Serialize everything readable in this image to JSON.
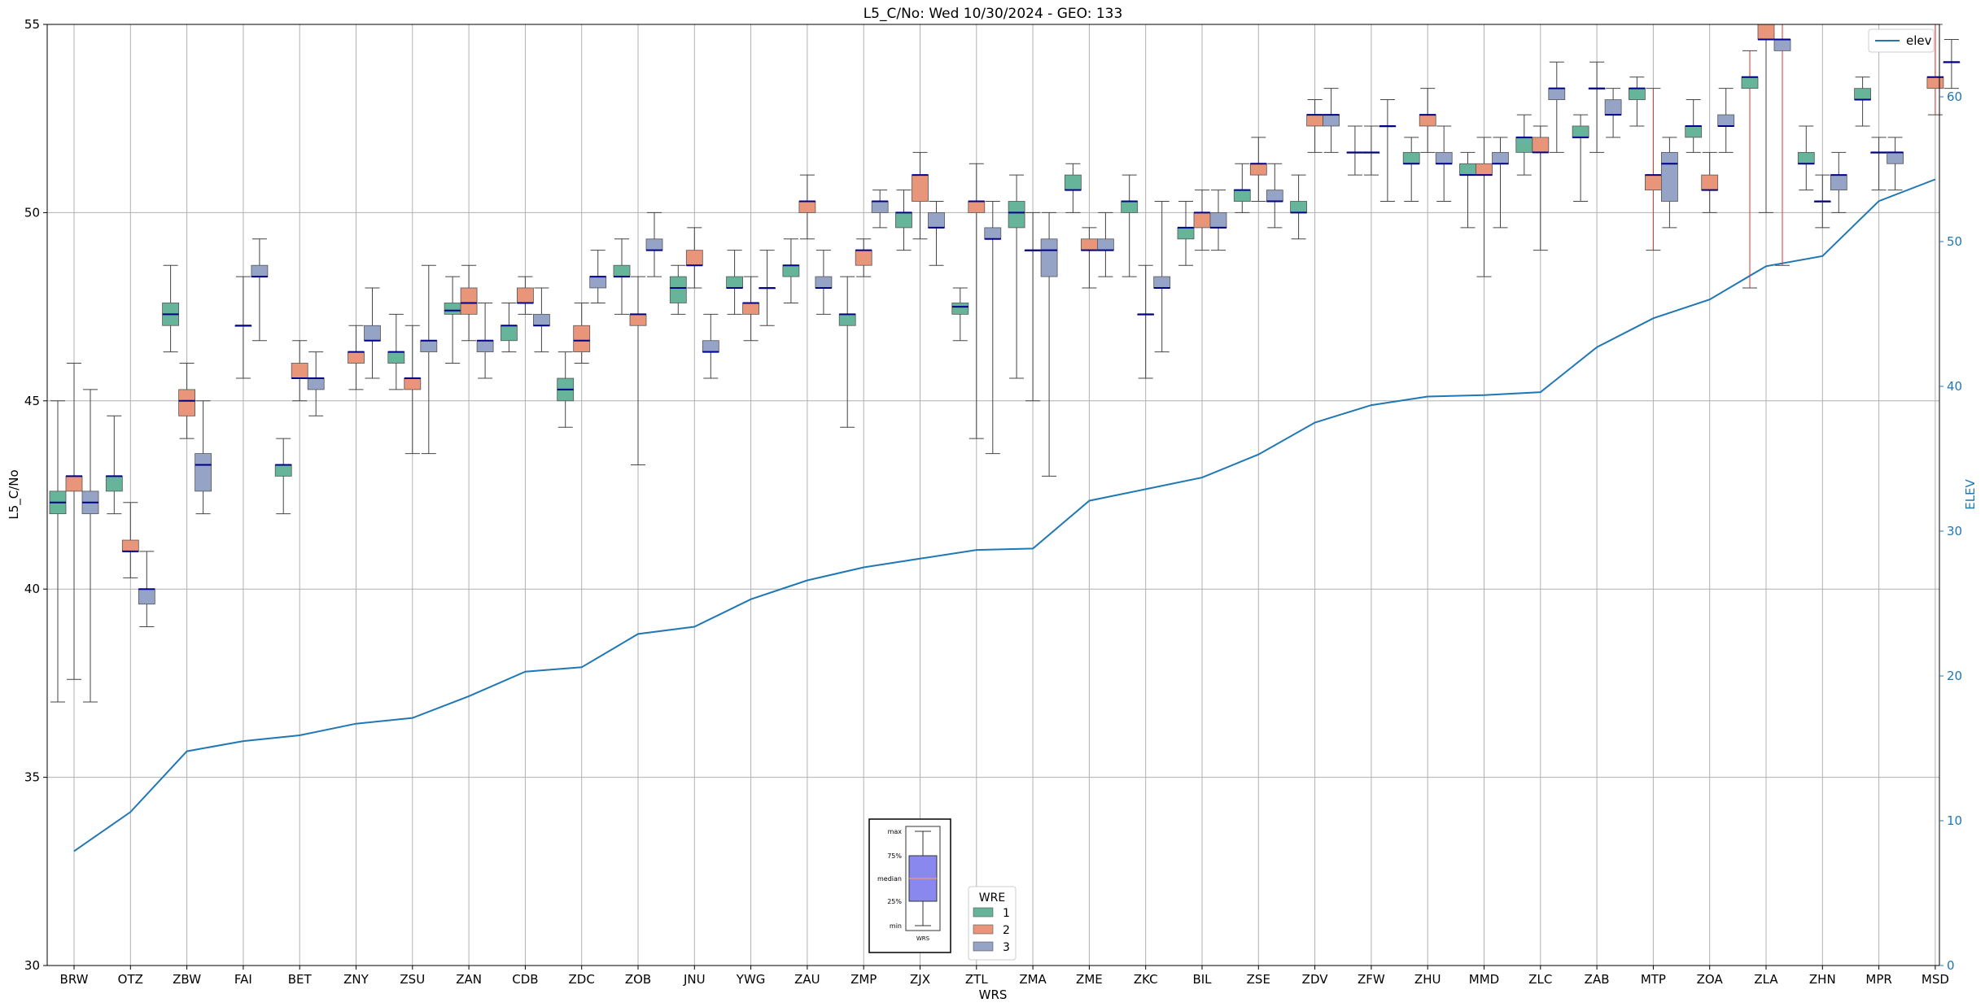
{
  "chart_data": {
    "type": "box",
    "title": "L5_C/No: Wed 10/30/2024 - GEO: 133",
    "xlabel": "WRS",
    "ylabel": "L5_C/No",
    "y2label": "ELEV",
    "ylim": [
      30,
      55
    ],
    "y2lim": [
      0,
      65
    ],
    "yticks": [
      30,
      35,
      40,
      45,
      50,
      55
    ],
    "y2ticks": [
      0,
      10,
      20,
      30,
      40,
      50,
      60
    ],
    "grid": true,
    "categories": [
      "BRW",
      "OTZ",
      "ZBW",
      "FAI",
      "BET",
      "ZNY",
      "ZSU",
      "ZAN",
      "CDB",
      "ZDC",
      "ZOB",
      "JNU",
      "YWG",
      "ZAU",
      "ZMP",
      "ZJX",
      "ZTL",
      "ZMA",
      "ZME",
      "ZKC",
      "BIL",
      "ZSE",
      "ZDV",
      "ZFW",
      "ZHU",
      "MMD",
      "ZLC",
      "ZAB",
      "MTP",
      "ZOA",
      "ZLA",
      "ZHN",
      "MPR",
      "MSD"
    ],
    "legend_title": "WRE",
    "legend_placement": "lower-center",
    "series": [
      {
        "name": "1",
        "color": "#66b49a",
        "boxes": [
          {
            "min": 37.0,
            "q1": 42.0,
            "med": 42.3,
            "q3": 42.6,
            "max": 45.0
          },
          {
            "min": 42.0,
            "q1": 42.6,
            "med": 43.0,
            "q3": 43.0,
            "max": 44.6
          },
          {
            "min": 46.3,
            "q1": 47.0,
            "med": 47.3,
            "q3": 47.6,
            "max": 48.6
          },
          null,
          {
            "min": 42.0,
            "q1": 43.0,
            "med": 43.3,
            "q3": 43.3,
            "max": 44.0
          },
          null,
          {
            "min": 45.3,
            "q1": 46.0,
            "med": 46.3,
            "q3": 46.3,
            "max": 47.3
          },
          {
            "min": 46.0,
            "q1": 47.3,
            "med": 47.4,
            "q3": 47.6,
            "max": 48.3
          },
          {
            "min": 46.3,
            "q1": 46.6,
            "med": 47.0,
            "q3": 47.0,
            "max": 47.6
          },
          {
            "min": 44.3,
            "q1": 45.0,
            "med": 45.3,
            "q3": 45.6,
            "max": 46.3
          },
          {
            "min": 47.3,
            "q1": 48.3,
            "med": 48.3,
            "q3": 48.6,
            "max": 49.3
          },
          {
            "min": 47.3,
            "q1": 47.6,
            "med": 48.0,
            "q3": 48.3,
            "max": 48.6
          },
          {
            "min": 47.3,
            "q1": 48.0,
            "med": 48.0,
            "q3": 48.3,
            "max": 49.0
          },
          {
            "min": 47.6,
            "q1": 48.3,
            "med": 48.6,
            "q3": 48.6,
            "max": 49.3
          },
          {
            "min": 44.3,
            "q1": 47.0,
            "med": 47.3,
            "q3": 47.3,
            "max": 48.3
          },
          {
            "min": 49.0,
            "q1": 49.6,
            "med": 50.0,
            "q3": 50.0,
            "max": 50.6
          },
          {
            "min": 46.6,
            "q1": 47.3,
            "med": 47.5,
            "q3": 47.6,
            "max": 48.0
          },
          {
            "min": 45.6,
            "q1": 49.6,
            "med": 50.0,
            "q3": 50.3,
            "max": 51.0
          },
          {
            "min": 50.0,
            "q1": 50.6,
            "med": 50.6,
            "q3": 51.0,
            "max": 51.3
          },
          {
            "min": 48.3,
            "q1": 50.0,
            "med": 50.3,
            "q3": 50.3,
            "max": 51.0
          },
          {
            "min": 48.6,
            "q1": 49.3,
            "med": 49.6,
            "q3": 49.6,
            "max": 50.3
          },
          {
            "min": 50.0,
            "q1": 50.3,
            "med": 50.6,
            "q3": 50.6,
            "max": 51.3
          },
          {
            "min": 49.3,
            "q1": 50.0,
            "med": 50.0,
            "q3": 50.3,
            "max": 51.0
          },
          {
            "min": 51.0,
            "q1": 51.6,
            "med": 51.6,
            "q3": 51.6,
            "max": 52.3
          },
          {
            "min": 50.3,
            "q1": 51.3,
            "med": 51.3,
            "q3": 51.6,
            "max": 52.0
          },
          {
            "min": 49.6,
            "q1": 51.0,
            "med": 51.0,
            "q3": 51.3,
            "max": 51.6
          },
          {
            "min": 51.0,
            "q1": 51.6,
            "med": 52.0,
            "q3": 52.0,
            "max": 52.6
          },
          {
            "min": 50.3,
            "q1": 52.0,
            "med": 52.0,
            "q3": 52.3,
            "max": 52.6
          },
          {
            "min": 52.3,
            "q1": 53.0,
            "med": 53.3,
            "q3": 53.3,
            "max": 53.6
          },
          {
            "min": 51.6,
            "q1": 52.0,
            "med": 52.3,
            "q3": 52.3,
            "max": 53.0
          },
          {
            "min": 48.0,
            "q1": 53.3,
            "med": 53.6,
            "q3": 53.6,
            "max": 54.3
          },
          {
            "min": 50.6,
            "q1": 51.3,
            "med": 51.3,
            "q3": 51.6,
            "max": 52.3
          },
          {
            "min": 52.3,
            "q1": 53.0,
            "med": 53.0,
            "q3": 53.3,
            "max": 53.6
          },
          null
        ]
      },
      {
        "name": "2",
        "color": "#e8957a",
        "boxes": [
          {
            "min": 37.6,
            "q1": 42.6,
            "med": 43.0,
            "q3": 43.0,
            "max": 46.0
          },
          {
            "min": 40.3,
            "q1": 41.0,
            "med": 41.0,
            "q3": 41.3,
            "max": 42.3
          },
          {
            "min": 44.0,
            "q1": 44.6,
            "med": 45.0,
            "q3": 45.3,
            "max": 46.0
          },
          {
            "min": 45.6,
            "q1": 47.0,
            "med": 47.0,
            "q3": 47.0,
            "max": 48.3
          },
          {
            "min": 45.0,
            "q1": 45.6,
            "med": 45.6,
            "q3": 46.0,
            "max": 46.6
          },
          {
            "min": 45.3,
            "q1": 46.0,
            "med": 46.3,
            "q3": 46.3,
            "max": 47.0
          },
          {
            "min": 43.6,
            "q1": 45.3,
            "med": 45.6,
            "q3": 45.6,
            "max": 47.0
          },
          {
            "min": 46.6,
            "q1": 47.3,
            "med": 47.6,
            "q3": 48.0,
            "max": 48.6
          },
          {
            "min": 47.3,
            "q1": 47.6,
            "med": 47.6,
            "q3": 48.0,
            "max": 48.3
          },
          {
            "min": 46.0,
            "q1": 46.3,
            "med": 46.6,
            "q3": 47.0,
            "max": 47.6
          },
          {
            "min": 43.3,
            "q1": 47.0,
            "med": 47.3,
            "q3": 47.3,
            "max": 48.3
          },
          {
            "min": 48.0,
            "q1": 48.6,
            "med": 48.6,
            "q3": 49.0,
            "max": 49.6
          },
          {
            "min": 46.6,
            "q1": 47.3,
            "med": 47.6,
            "q3": 47.6,
            "max": 48.3
          },
          {
            "min": 49.3,
            "q1": 50.0,
            "med": 50.3,
            "q3": 50.3,
            "max": 51.0
          },
          {
            "min": 48.3,
            "q1": 48.6,
            "med": 49.0,
            "q3": 49.0,
            "max": 49.3
          },
          {
            "min": 49.3,
            "q1": 50.3,
            "med": 51.0,
            "q3": 51.0,
            "max": 51.6
          },
          {
            "min": 44.0,
            "q1": 50.0,
            "med": 50.3,
            "q3": 50.3,
            "max": 51.3
          },
          {
            "min": 45.0,
            "q1": 49.0,
            "med": 49.0,
            "q3": 49.0,
            "max": 50.0
          },
          {
            "min": 48.0,
            "q1": 49.0,
            "med": 49.0,
            "q3": 49.3,
            "max": 49.6
          },
          {
            "min": 45.6,
            "q1": 47.3,
            "med": 47.3,
            "q3": 47.3,
            "max": 48.6
          },
          {
            "min": 49.0,
            "q1": 49.6,
            "med": 50.0,
            "q3": 50.0,
            "max": 50.6
          },
          {
            "min": 50.3,
            "q1": 51.0,
            "med": 51.3,
            "q3": 51.3,
            "max": 52.0
          },
          {
            "min": 51.6,
            "q1": 52.3,
            "med": 52.6,
            "q3": 52.6,
            "max": 53.0
          },
          {
            "min": 51.0,
            "q1": 51.6,
            "med": 51.6,
            "q3": 51.6,
            "max": 52.3
          },
          {
            "min": 51.6,
            "q1": 52.3,
            "med": 52.6,
            "q3": 52.6,
            "max": 53.3
          },
          {
            "min": 48.3,
            "q1": 51.0,
            "med": 51.0,
            "q3": 51.3,
            "max": 52.0
          },
          {
            "min": 49.0,
            "q1": 51.6,
            "med": 51.6,
            "q3": 52.0,
            "max": 52.3
          },
          {
            "min": 51.6,
            "q1": 53.3,
            "med": 53.3,
            "q3": 53.3,
            "max": 54.0
          },
          {
            "min": 49.0,
            "q1": 50.6,
            "med": 51.0,
            "q3": 51.0,
            "max": 53.3
          },
          {
            "min": 50.0,
            "q1": 50.6,
            "med": 50.6,
            "q3": 51.0,
            "max": 51.6
          },
          {
            "min": 50.0,
            "q1": 54.6,
            "med": 54.6,
            "q3": 55.0,
            "max": 55.0
          },
          {
            "min": 49.6,
            "q1": 50.3,
            "med": 50.3,
            "q3": 50.3,
            "max": 51.0
          },
          {
            "min": 50.6,
            "q1": 51.6,
            "med": 51.6,
            "q3": 51.6,
            "max": 52.0
          },
          {
            "min": 52.6,
            "q1": 53.3,
            "med": 53.6,
            "q3": 53.6,
            "max": 55.0
          }
        ]
      },
      {
        "name": "3",
        "color": "#94a3c6",
        "boxes": [
          {
            "min": 37.0,
            "q1": 42.0,
            "med": 42.3,
            "q3": 42.6,
            "max": 45.3
          },
          {
            "min": 39.0,
            "q1": 39.6,
            "med": 40.0,
            "q3": 40.0,
            "max": 41.0
          },
          {
            "min": 42.0,
            "q1": 42.6,
            "med": 43.3,
            "q3": 43.6,
            "max": 45.0
          },
          {
            "min": 46.6,
            "q1": 48.3,
            "med": 48.3,
            "q3": 48.6,
            "max": 49.3
          },
          {
            "min": 44.6,
            "q1": 45.3,
            "med": 45.6,
            "q3": 45.6,
            "max": 46.3
          },
          {
            "min": 45.6,
            "q1": 46.6,
            "med": 46.6,
            "q3": 47.0,
            "max": 48.0
          },
          {
            "min": 43.6,
            "q1": 46.3,
            "med": 46.6,
            "q3": 46.6,
            "max": 48.6
          },
          {
            "min": 45.6,
            "q1": 46.3,
            "med": 46.6,
            "q3": 46.6,
            "max": 47.6
          },
          {
            "min": 46.3,
            "q1": 47.0,
            "med": 47.0,
            "q3": 47.3,
            "max": 48.0
          },
          {
            "min": 47.6,
            "q1": 48.0,
            "med": 48.3,
            "q3": 48.3,
            "max": 49.0
          },
          {
            "min": 48.3,
            "q1": 49.0,
            "med": 49.0,
            "q3": 49.3,
            "max": 50.0
          },
          {
            "min": 45.6,
            "q1": 46.3,
            "med": 46.3,
            "q3": 46.6,
            "max": 47.3
          },
          {
            "min": 47.0,
            "q1": 48.0,
            "med": 48.0,
            "q3": 48.0,
            "max": 49.0
          },
          {
            "min": 47.3,
            "q1": 48.0,
            "med": 48.0,
            "q3": 48.3,
            "max": 49.0
          },
          {
            "min": 49.6,
            "q1": 50.0,
            "med": 50.3,
            "q3": 50.3,
            "max": 50.6
          },
          {
            "min": 48.6,
            "q1": 49.6,
            "med": 49.6,
            "q3": 50.0,
            "max": 50.3
          },
          {
            "min": 43.6,
            "q1": 49.3,
            "med": 49.3,
            "q3": 49.6,
            "max": 50.3
          },
          {
            "min": 43.0,
            "q1": 48.3,
            "med": 49.0,
            "q3": 49.3,
            "max": 50.0
          },
          {
            "min": 48.3,
            "q1": 49.0,
            "med": 49.0,
            "q3": 49.3,
            "max": 50.0
          },
          {
            "min": 46.3,
            "q1": 48.0,
            "med": 48.0,
            "q3": 48.3,
            "max": 50.3
          },
          {
            "min": 49.0,
            "q1": 49.6,
            "med": 49.6,
            "q3": 50.0,
            "max": 50.6
          },
          {
            "min": 49.6,
            "q1": 50.3,
            "med": 50.3,
            "q3": 50.6,
            "max": 51.3
          },
          {
            "min": 51.6,
            "q1": 52.3,
            "med": 52.6,
            "q3": 52.6,
            "max": 53.3
          },
          {
            "min": 50.3,
            "q1": 52.3,
            "med": 52.3,
            "q3": 52.3,
            "max": 53.0
          },
          {
            "min": 50.3,
            "q1": 51.3,
            "med": 51.3,
            "q3": 51.6,
            "max": 52.3
          },
          {
            "min": 49.6,
            "q1": 51.3,
            "med": 51.3,
            "q3": 51.6,
            "max": 52.0
          },
          {
            "min": 51.6,
            "q1": 53.0,
            "med": 53.3,
            "q3": 53.3,
            "max": 54.0
          },
          {
            "min": 52.0,
            "q1": 52.6,
            "med": 52.6,
            "q3": 53.0,
            "max": 53.3
          },
          {
            "min": 49.6,
            "q1": 50.3,
            "med": 51.3,
            "q3": 51.6,
            "max": 52.0
          },
          {
            "min": 51.6,
            "q1": 52.3,
            "med": 52.3,
            "q3": 52.6,
            "max": 53.3
          },
          {
            "min": 48.6,
            "q1": 54.3,
            "med": 54.6,
            "q3": 54.6,
            "max": 55.0
          },
          {
            "min": 50.0,
            "q1": 50.6,
            "med": 51.0,
            "q3": 51.0,
            "max": 51.6
          },
          {
            "min": 50.6,
            "q1": 51.3,
            "med": 51.6,
            "q3": 51.6,
            "max": 52.0
          },
          {
            "min": 53.3,
            "q1": 54.0,
            "med": 54.0,
            "q3": 54.0,
            "max": 54.6
          }
        ]
      }
    ],
    "elev": {
      "name": "elev",
      "color": "#1f77b4",
      "values": [
        7.9,
        10.6,
        14.8,
        15.5,
        15.9,
        16.7,
        17.1,
        18.6,
        20.3,
        20.6,
        22.9,
        23.4,
        25.3,
        26.6,
        27.5,
        28.1,
        28.7,
        28.8,
        32.1,
        32.9,
        33.7,
        35.3,
        37.5,
        38.7,
        39.3,
        39.4,
        39.6,
        42.7,
        44.7,
        46.0,
        48.3,
        49.0,
        52.8,
        54.3
      ]
    },
    "inset_key": {
      "labels": [
        "max",
        "75%",
        "median",
        "25%",
        "min"
      ],
      "caption": "WRS"
    }
  }
}
